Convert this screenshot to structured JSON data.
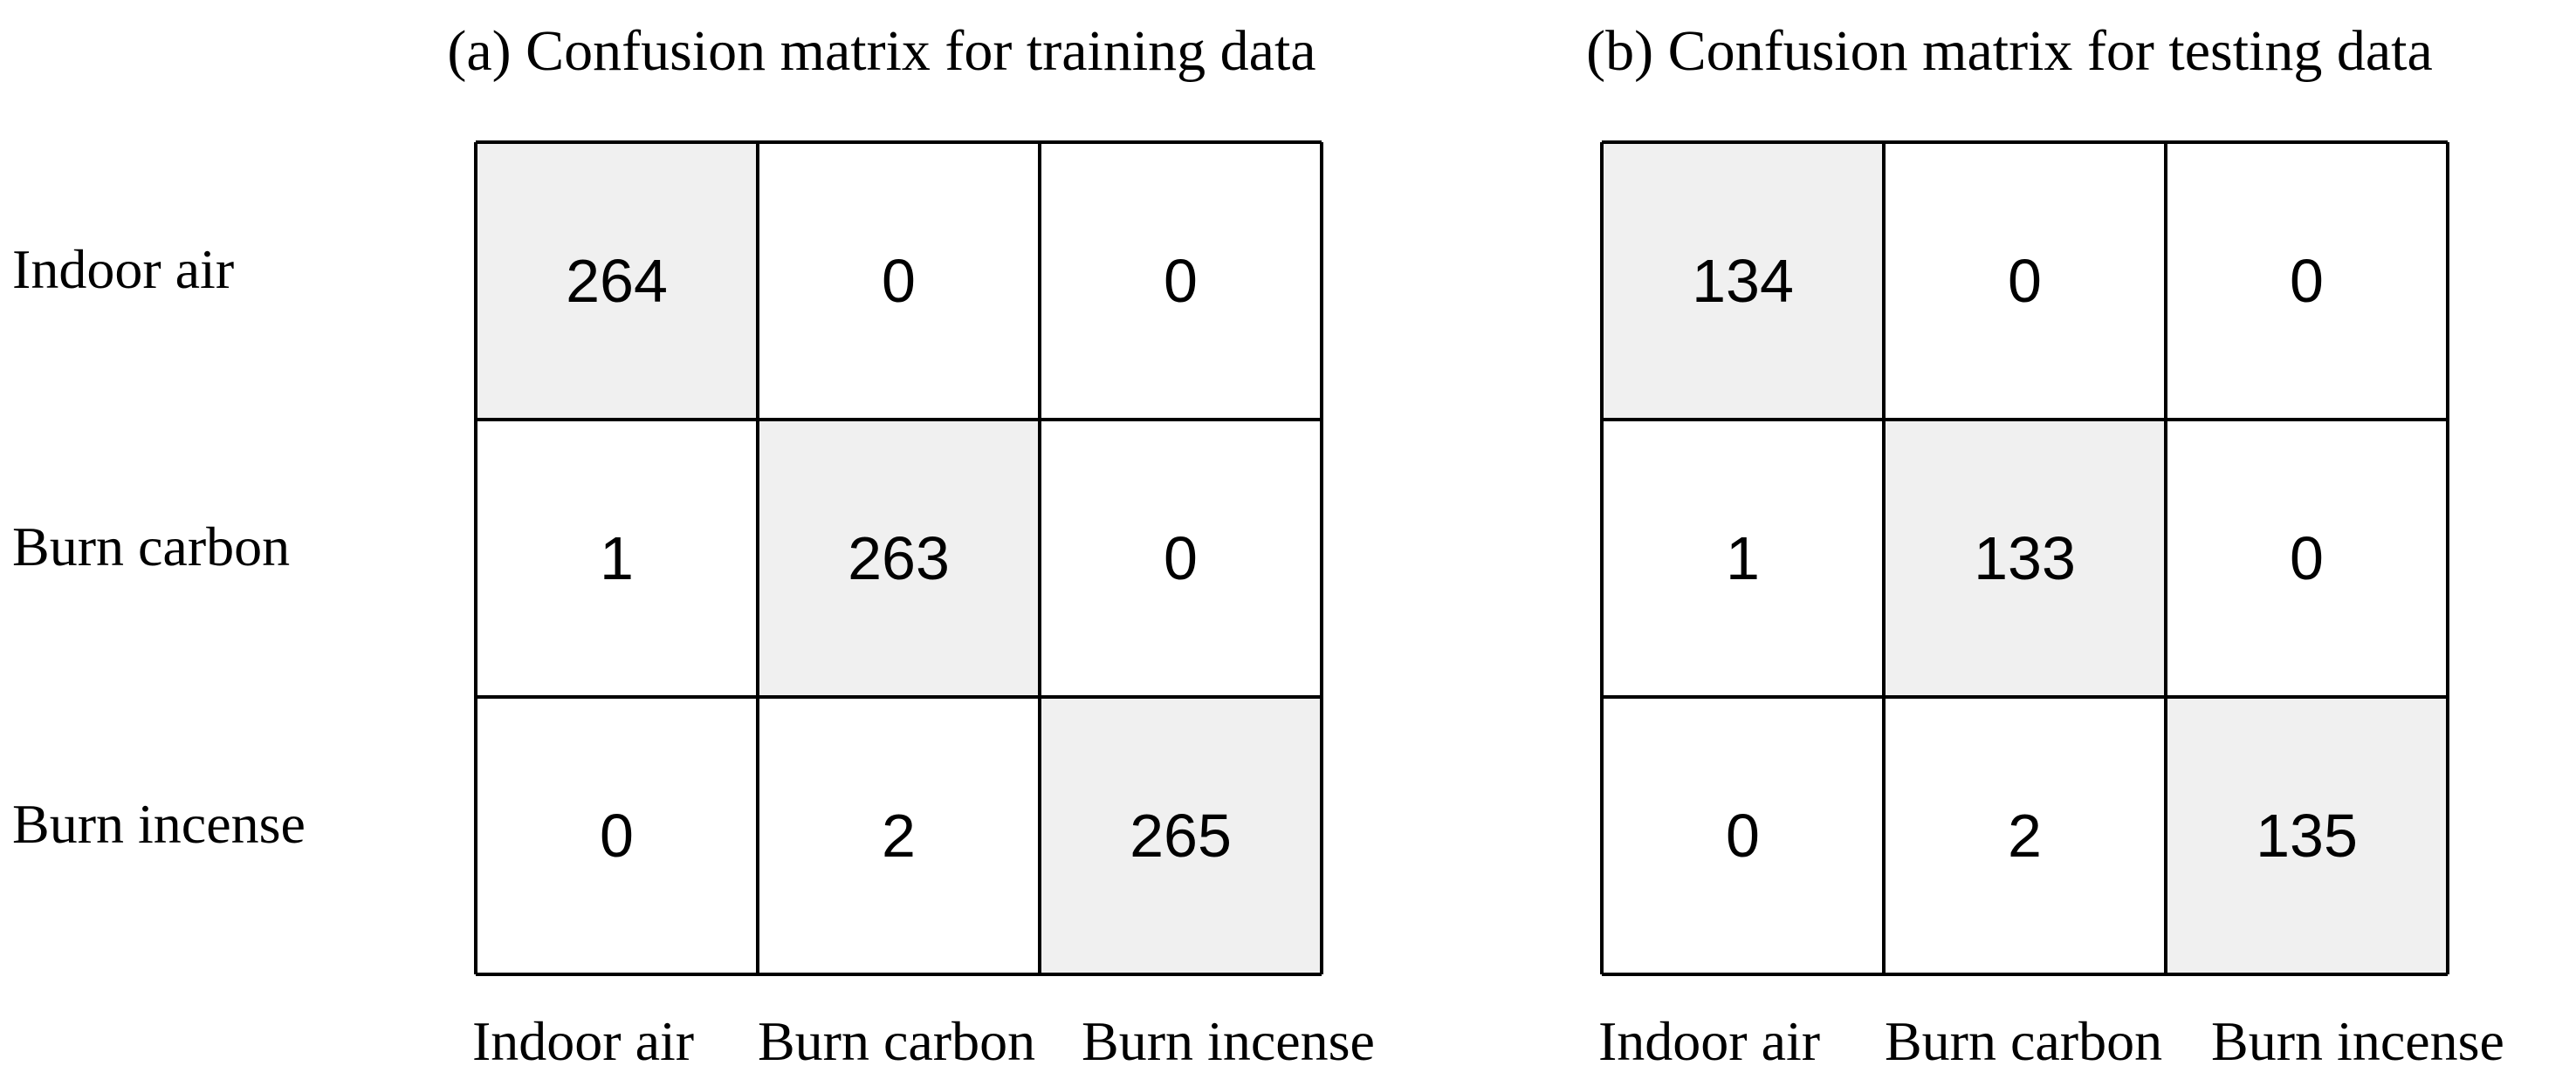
{
  "figure": {
    "row_labels": [
      "Indoor air",
      "Burn carbon",
      "Burn incense"
    ],
    "col_labels": [
      "Indoor air",
      "Burn carbon",
      "Burn incense"
    ]
  },
  "chart_data": [
    {
      "type": "heatmap",
      "title": "(a) Confusion matrix for training data",
      "rows": [
        "Indoor air",
        "Burn carbon",
        "Burn incense"
      ],
      "columns": [
        "Indoor air",
        "Burn carbon",
        "Burn incense"
      ],
      "values": [
        [
          264,
          0,
          0
        ],
        [
          1,
          263,
          0
        ],
        [
          0,
          2,
          265
        ]
      ],
      "diagonal_color": "#f0f0f0",
      "cell_color": "#ffffff",
      "border_color": "#000000"
    },
    {
      "type": "heatmap",
      "title": "(b) Confusion matrix for testing data",
      "rows": [
        "Indoor air",
        "Burn carbon",
        "Burn incense"
      ],
      "columns": [
        "Indoor air",
        "Burn carbon",
        "Burn incense"
      ],
      "values": [
        [
          134,
          0,
          0
        ],
        [
          1,
          133,
          0
        ],
        [
          0,
          2,
          135
        ]
      ],
      "diagonal_color": "#f0f0f0",
      "cell_color": "#ffffff",
      "border_color": "#000000"
    }
  ]
}
